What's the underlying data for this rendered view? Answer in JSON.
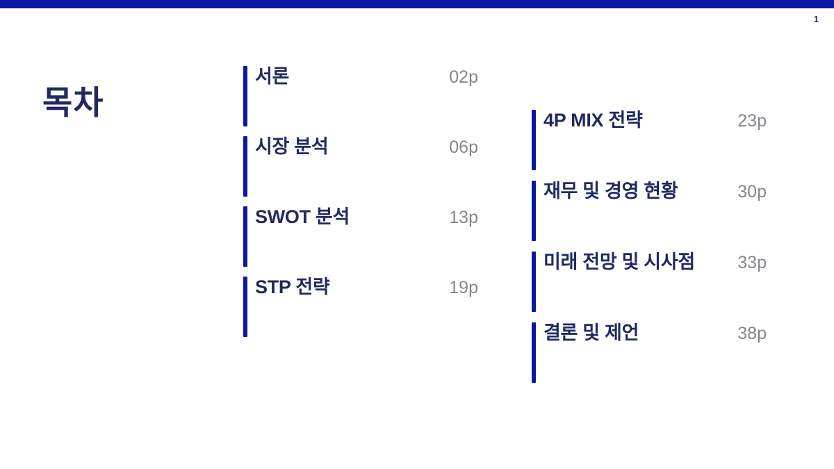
{
  "page": {
    "number": "1",
    "title": "목차"
  },
  "theme": {
    "accent_blue": "#0c18a3",
    "navy_text": "#202a60",
    "gray_text": "#85858c",
    "background": "#ffffff"
  },
  "toc": {
    "left_items": [
      {
        "label": "서론",
        "page": "02p"
      },
      {
        "label": "시장 분석",
        "page": "06p"
      },
      {
        "label": "SWOT 분석",
        "page": "13p"
      },
      {
        "label": "STP 전략",
        "page": "19p"
      }
    ],
    "right_items": [
      {
        "label": "4P MIX 전략",
        "page": "23p"
      },
      {
        "label": "재무 및 경영 현황",
        "page": "30p"
      },
      {
        "label": "미래 전망 및 시사점",
        "page": "33p"
      },
      {
        "label": "결론 및 제언",
        "page": "38p"
      }
    ]
  }
}
